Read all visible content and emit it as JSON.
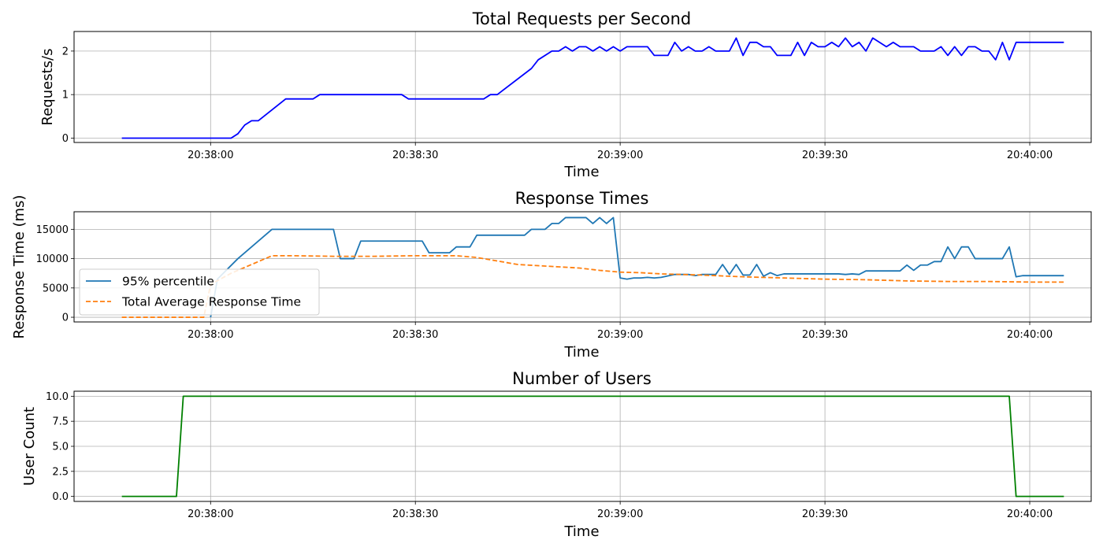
{
  "chart_data": [
    {
      "type": "line",
      "title": "Total Requests per Second",
      "xlabel": "Time",
      "ylabel": "Requests/s",
      "xlim": [
        "20:37:40",
        "20:40:09"
      ],
      "ylim": [
        -0.1,
        2.45
      ],
      "yticks": [
        0,
        1,
        2
      ],
      "ytick_labels": [
        "0",
        "1",
        "2"
      ],
      "xticks": [
        "20:38:00",
        "20:38:30",
        "20:39:00",
        "20:39:30",
        "20:40:00"
      ],
      "grid": true,
      "legend": "none",
      "series": [
        {
          "color": "#0000ff",
          "style": "solid",
          "points": [
            [
              "20:37:47",
              0
            ],
            [
              "20:37:55",
              0
            ],
            [
              "20:38:00",
              0
            ],
            [
              "20:38:03",
              0
            ],
            [
              "20:38:04",
              0.1
            ],
            [
              "20:38:05",
              0.3
            ],
            [
              "20:38:06",
              0.4
            ],
            [
              "20:38:07",
              0.4
            ],
            [
              "20:38:11",
              0.9
            ],
            [
              "20:38:15",
              0.9
            ],
            [
              "20:38:16",
              1.0
            ],
            [
              "20:38:28",
              1.0
            ],
            [
              "20:38:29",
              0.9
            ],
            [
              "20:38:40",
              0.9
            ],
            [
              "20:38:41",
              1.0
            ],
            [
              "20:38:42",
              1.0
            ],
            [
              "20:38:47",
              1.6
            ],
            [
              "20:38:48",
              1.8
            ],
            [
              "20:38:50",
              2.0
            ],
            [
              "20:38:51",
              2.0
            ],
            [
              "20:38:52",
              2.1
            ],
            [
              "20:38:53",
              2.0
            ],
            [
              "20:38:54",
              2.1
            ],
            [
              "20:38:55",
              2.1
            ],
            [
              "20:38:56",
              2.0
            ],
            [
              "20:38:57",
              2.1
            ],
            [
              "20:38:58",
              2.0
            ],
            [
              "20:38:59",
              2.1
            ],
            [
              "20:39:00",
              2.0
            ],
            [
              "20:39:01",
              2.1
            ],
            [
              "20:39:04",
              2.1
            ],
            [
              "20:39:05",
              1.9
            ],
            [
              "20:39:07",
              1.9
            ],
            [
              "20:39:08",
              2.2
            ],
            [
              "20:39:09",
              2.0
            ],
            [
              "20:39:10",
              2.1
            ],
            [
              "20:39:11",
              2.0
            ],
            [
              "20:39:12",
              2.0
            ],
            [
              "20:39:13",
              2.1
            ],
            [
              "20:39:14",
              2.0
            ],
            [
              "20:39:16",
              2.0
            ],
            [
              "20:39:17",
              2.3
            ],
            [
              "20:39:18",
              1.9
            ],
            [
              "20:39:19",
              2.2
            ],
            [
              "20:39:20",
              2.2
            ],
            [
              "20:39:21",
              2.1
            ],
            [
              "20:39:22",
              2.1
            ],
            [
              "20:39:23",
              1.9
            ],
            [
              "20:39:25",
              1.9
            ],
            [
              "20:39:26",
              2.2
            ],
            [
              "20:39:27",
              1.9
            ],
            [
              "20:39:28",
              2.2
            ],
            [
              "20:39:29",
              2.1
            ],
            [
              "20:39:30",
              2.1
            ],
            [
              "20:39:31",
              2.2
            ],
            [
              "20:39:32",
              2.1
            ],
            [
              "20:39:33",
              2.3
            ],
            [
              "20:39:34",
              2.1
            ],
            [
              "20:39:35",
              2.2
            ],
            [
              "20:39:36",
              2.0
            ],
            [
              "20:39:37",
              2.3
            ],
            [
              "20:39:39",
              2.1
            ],
            [
              "20:39:40",
              2.2
            ],
            [
              "20:39:41",
              2.1
            ],
            [
              "20:39:43",
              2.1
            ],
            [
              "20:39:44",
              2.0
            ],
            [
              "20:39:46",
              2.0
            ],
            [
              "20:39:47",
              2.1
            ],
            [
              "20:39:48",
              1.9
            ],
            [
              "20:39:49",
              2.1
            ],
            [
              "20:39:50",
              1.9
            ],
            [
              "20:39:51",
              2.1
            ],
            [
              "20:39:52",
              2.1
            ],
            [
              "20:39:53",
              2.0
            ],
            [
              "20:39:54",
              2.0
            ],
            [
              "20:39:55",
              1.8
            ],
            [
              "20:39:56",
              2.2
            ],
            [
              "20:39:57",
              1.8
            ],
            [
              "20:39:58",
              2.2
            ],
            [
              "20:40:05",
              2.2
            ]
          ]
        }
      ]
    },
    {
      "type": "line",
      "title": "Response Times",
      "xlabel": "Time",
      "ylabel": "Response Time (ms)",
      "xlim": [
        "20:37:40",
        "20:40:09"
      ],
      "ylim": [
        -800,
        18000
      ],
      "yticks": [
        0,
        5000,
        10000,
        15000
      ],
      "ytick_labels": [
        "0",
        "5000",
        "10000",
        "15000"
      ],
      "xticks": [
        "20:38:00",
        "20:38:30",
        "20:39:00",
        "20:39:30",
        "20:40:00"
      ],
      "grid": true,
      "legend": "lower-left",
      "series": [
        {
          "name": "95% percentile",
          "color": "#1f77b4",
          "style": "solid",
          "points": [
            [
              "20:38:00",
              0
            ],
            [
              "20:38:01",
              6500
            ],
            [
              "20:38:04",
              10000
            ],
            [
              "20:38:09",
              15000
            ],
            [
              "20:38:18",
              15000
            ],
            [
              "20:38:19",
              10000
            ],
            [
              "20:38:21",
              10000
            ],
            [
              "20:38:22",
              13000
            ],
            [
              "20:38:31",
              13000
            ],
            [
              "20:38:32",
              11000
            ],
            [
              "20:38:35",
              11000
            ],
            [
              "20:38:36",
              12000
            ],
            [
              "20:38:38",
              12000
            ],
            [
              "20:38:39",
              14000
            ],
            [
              "20:38:46",
              14000
            ],
            [
              "20:38:47",
              15000
            ],
            [
              "20:38:49",
              15000
            ],
            [
              "20:38:50",
              16000
            ],
            [
              "20:38:51",
              16000
            ],
            [
              "20:38:52",
              17000
            ],
            [
              "20:38:55",
              17000
            ],
            [
              "20:38:56",
              16000
            ],
            [
              "20:38:57",
              17000
            ],
            [
              "20:38:58",
              16000
            ],
            [
              "20:38:59",
              17000
            ],
            [
              "20:39:00",
              6700
            ],
            [
              "20:39:01",
              6500
            ],
            [
              "20:39:02",
              6700
            ],
            [
              "20:39:03",
              6700
            ],
            [
              "20:39:04",
              6800
            ],
            [
              "20:39:05",
              6700
            ],
            [
              "20:39:06",
              6800
            ],
            [
              "20:39:08",
              7300
            ],
            [
              "20:39:10",
              7300
            ],
            [
              "20:39:11",
              7100
            ],
            [
              "20:39:12",
              7300
            ],
            [
              "20:39:14",
              7300
            ],
            [
              "20:39:15",
              9000
            ],
            [
              "20:39:16",
              7300
            ],
            [
              "20:39:17",
              9000
            ],
            [
              "20:39:18",
              7200
            ],
            [
              "20:39:19",
              7200
            ],
            [
              "20:39:20",
              9000
            ],
            [
              "20:39:21",
              7000
            ],
            [
              "20:39:22",
              7600
            ],
            [
              "20:39:23",
              7100
            ],
            [
              "20:39:24",
              7400
            ],
            [
              "20:39:32",
              7400
            ],
            [
              "20:39:33",
              7300
            ],
            [
              "20:39:34",
              7400
            ],
            [
              "20:39:35",
              7300
            ],
            [
              "20:39:36",
              7900
            ],
            [
              "20:39:41",
              7900
            ],
            [
              "20:39:42",
              8900
            ],
            [
              "20:39:43",
              8000
            ],
            [
              "20:39:44",
              8900
            ],
            [
              "20:39:45",
              8900
            ],
            [
              "20:39:46",
              9500
            ],
            [
              "20:39:47",
              9500
            ],
            [
              "20:39:48",
              12000
            ],
            [
              "20:39:49",
              10000
            ],
            [
              "20:39:50",
              12000
            ],
            [
              "20:39:51",
              12000
            ],
            [
              "20:39:52",
              10000
            ],
            [
              "20:39:56",
              10000
            ],
            [
              "20:39:57",
              12000
            ],
            [
              "20:39:58",
              6900
            ],
            [
              "20:39:59",
              7100
            ],
            [
              "20:40:05",
              7100
            ]
          ]
        },
        {
          "name": "Total Average Response Time",
          "color": "#ff7f0e",
          "style": "dashed",
          "points": [
            [
              "20:37:47",
              0
            ],
            [
              "20:37:59",
              0
            ],
            [
              "20:38:00",
              5600
            ],
            [
              "20:38:03",
              7500
            ],
            [
              "20:38:06",
              9000
            ],
            [
              "20:38:09",
              10500
            ],
            [
              "20:38:12",
              10500
            ],
            [
              "20:38:18",
              10400
            ],
            [
              "20:38:24",
              10400
            ],
            [
              "20:38:30",
              10500
            ],
            [
              "20:38:36",
              10500
            ],
            [
              "20:38:39",
              10200
            ],
            [
              "20:38:42",
              9600
            ],
            [
              "20:38:45",
              9000
            ],
            [
              "20:38:48",
              8800
            ],
            [
              "20:38:51",
              8600
            ],
            [
              "20:38:54",
              8400
            ],
            [
              "20:38:57",
              8000
            ],
            [
              "20:39:00",
              7700
            ],
            [
              "20:39:03",
              7600
            ],
            [
              "20:39:06",
              7400
            ],
            [
              "20:39:12",
              7200
            ],
            [
              "20:39:18",
              6900
            ],
            [
              "20:39:24",
              6700
            ],
            [
              "20:39:30",
              6500
            ],
            [
              "20:39:36",
              6400
            ],
            [
              "20:39:42",
              6200
            ],
            [
              "20:39:48",
              6100
            ],
            [
              "20:39:54",
              6100
            ],
            [
              "20:40:00",
              6000
            ],
            [
              "20:40:05",
              6000
            ]
          ]
        }
      ]
    },
    {
      "type": "line",
      "title": "Number of Users",
      "xlabel": "Time",
      "ylabel": "User Count",
      "xlim": [
        "20:37:40",
        "20:40:09"
      ],
      "ylim": [
        -0.5,
        10.5
      ],
      "yticks": [
        0,
        2.5,
        5,
        7.5,
        10
      ],
      "ytick_labels": [
        "0.0",
        "2.5",
        "5.0",
        "7.5",
        "10.0"
      ],
      "xticks": [
        "20:38:00",
        "20:38:30",
        "20:39:00",
        "20:39:30",
        "20:40:00"
      ],
      "grid": true,
      "legend": "none",
      "series": [
        {
          "color": "#008000",
          "style": "solid",
          "points": [
            [
              "20:37:47",
              0
            ],
            [
              "20:37:55",
              0
            ],
            [
              "20:37:56",
              10
            ],
            [
              "20:39:57",
              10
            ],
            [
              "20:39:58",
              0
            ],
            [
              "20:40:05",
              0
            ]
          ]
        }
      ]
    }
  ]
}
